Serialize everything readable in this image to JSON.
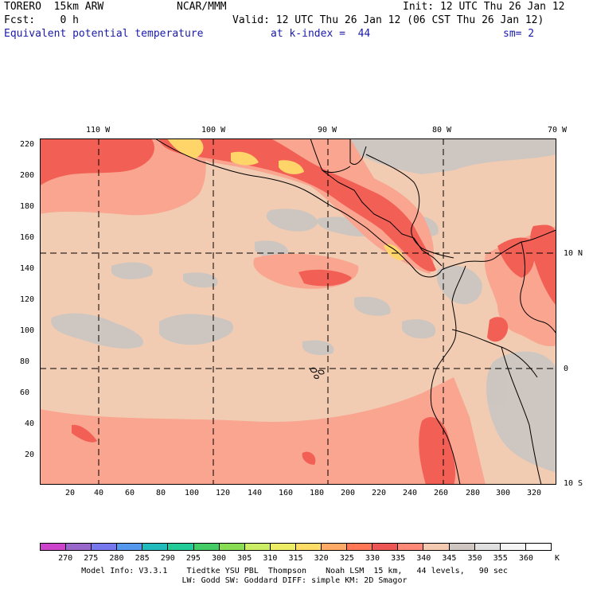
{
  "header": {
    "model": "TORERO  15km ARW",
    "center": "NCAR/MMM",
    "init": "Init: 12 UTC Thu 26 Jan 12",
    "fcst": "Fcst:    0 h",
    "valid": "Valid: 12 UTC Thu 26 Jan 12 (06 CST Thu 26 Jan 12)",
    "field": "Equivalent potential temperature",
    "level": "at k-index =  44",
    "smoothing": "sm= 2"
  },
  "longitude_labels": [
    "110 W",
    "100 W",
    "90 W",
    "80 W",
    "70 W"
  ],
  "latitude_labels": [
    "10 N",
    "0",
    "10 S"
  ],
  "y_ticks": [
    "220",
    "200",
    "180",
    "160",
    "140",
    "120",
    "100",
    "80",
    "60",
    "40",
    "20"
  ],
  "x_ticks": [
    "20",
    "40",
    "60",
    "80",
    "100",
    "120",
    "140",
    "160",
    "180",
    "200",
    "220",
    "240",
    "260",
    "280",
    "300",
    "320"
  ],
  "colorbar": {
    "unit": "K",
    "levels": [
      "270",
      "275",
      "280",
      "285",
      "290",
      "295",
      "300",
      "305",
      "310",
      "315",
      "320",
      "325",
      "330",
      "335",
      "340",
      "345",
      "350",
      "355",
      "360"
    ],
    "colors": [
      "#cc44cc",
      "#9966cc",
      "#7777ee",
      "#5599ee",
      "#22bbbb",
      "#22cc99",
      "#44cc66",
      "#88dd55",
      "#ccee66",
      "#eeee66",
      "#ffdd66",
      "#ffaa66",
      "#ff7755",
      "#ee5555",
      "#ff8877",
      "#f4cbb0",
      "#cfc6c2",
      "#e0e0e0",
      "#f4f4f4",
      "#ffffff"
    ]
  },
  "footer": {
    "line1": "Model Info: V3.3.1    Tiedtke YSU PBL  Thompson    Noah LSM  15 km,   44 levels,   90 sec",
    "line2": "LW: Godd SW: Goddard DIFF: simple KM: 2D Smagor"
  },
  "map_colors": {
    "ocean": "#f2ccb2",
    "cool": "#cbc5c1",
    "warm": "#f9a58f",
    "hot": "#f25f55",
    "hotter": "#ffd56a",
    "line": "#000000"
  }
}
